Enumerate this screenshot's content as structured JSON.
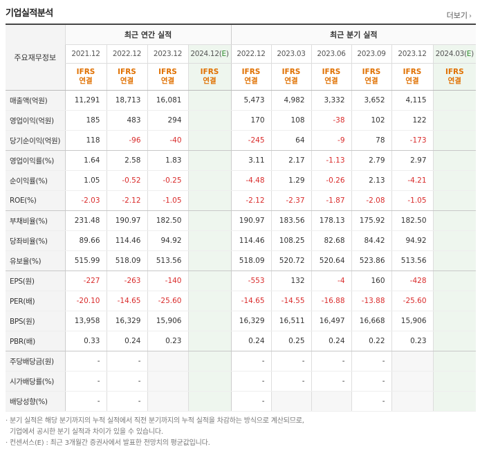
{
  "header": {
    "title": "기업실적분석",
    "more_label": "더보기"
  },
  "table": {
    "row_header_label": "주요재무정보",
    "annual_label": "최근 연간 실적",
    "quarter_label": "최근 분기 실적",
    "annual_periods": [
      "2021.12",
      "2022.12",
      "2023.12",
      "2024.12(E)"
    ],
    "quarter_periods": [
      "2022.12",
      "2023.03",
      "2023.06",
      "2023.09",
      "2023.12",
      "2024.03(E)"
    ],
    "ifrs_line1": "IFRS",
    "ifrs_line2": "연결",
    "rows": [
      {
        "label": "매출액(억원)",
        "annual": [
          "11,291",
          "18,713",
          "16,081",
          ""
        ],
        "quarter": [
          "5,473",
          "4,982",
          "3,332",
          "3,652",
          "4,115",
          ""
        ]
      },
      {
        "label": "영업이익(억원)",
        "annual": [
          "185",
          "483",
          "294",
          ""
        ],
        "quarter": [
          "170",
          "108",
          "-38",
          "102",
          "122",
          ""
        ]
      },
      {
        "label": "당기순이익(억원)",
        "annual": [
          "118",
          "-96",
          "-40",
          ""
        ],
        "quarter": [
          "-245",
          "64",
          "-9",
          "78",
          "-173",
          ""
        ]
      },
      {
        "label": "영업이익률(%)",
        "annual": [
          "1.64",
          "2.58",
          "1.83",
          ""
        ],
        "quarter": [
          "3.11",
          "2.17",
          "-1.13",
          "2.79",
          "2.97",
          ""
        ]
      },
      {
        "label": "순이익률(%)",
        "annual": [
          "1.05",
          "-0.52",
          "-0.25",
          ""
        ],
        "quarter": [
          "-4.48",
          "1.29",
          "-0.26",
          "2.13",
          "-4.21",
          ""
        ]
      },
      {
        "label": "ROE(%)",
        "annual": [
          "-2.03",
          "-2.12",
          "-1.05",
          ""
        ],
        "quarter": [
          "-2.12",
          "-2.37",
          "-1.87",
          "-2.08",
          "-1.05",
          ""
        ]
      },
      {
        "label": "부채비율(%)",
        "annual": [
          "231.48",
          "190.97",
          "182.50",
          ""
        ],
        "quarter": [
          "190.97",
          "183.56",
          "178.13",
          "175.92",
          "182.50",
          ""
        ]
      },
      {
        "label": "당좌비율(%)",
        "annual": [
          "89.66",
          "114.46",
          "94.92",
          ""
        ],
        "quarter": [
          "114.46",
          "108.25",
          "82.68",
          "84.42",
          "94.92",
          ""
        ]
      },
      {
        "label": "유보율(%)",
        "annual": [
          "515.99",
          "518.09",
          "513.56",
          ""
        ],
        "quarter": [
          "518.09",
          "520.72",
          "520.64",
          "523.86",
          "513.56",
          ""
        ]
      },
      {
        "label": "EPS(원)",
        "annual": [
          "-227",
          "-263",
          "-140",
          ""
        ],
        "quarter": [
          "-553",
          "132",
          "-4",
          "160",
          "-428",
          ""
        ]
      },
      {
        "label": "PER(배)",
        "annual": [
          "-20.10",
          "-14.65",
          "-25.60",
          ""
        ],
        "quarter": [
          "-14.65",
          "-14.55",
          "-16.88",
          "-13.88",
          "-25.60",
          ""
        ]
      },
      {
        "label": "BPS(원)",
        "annual": [
          "13,958",
          "16,329",
          "15,906",
          ""
        ],
        "quarter": [
          "16,329",
          "16,511",
          "16,497",
          "16,668",
          "15,906",
          ""
        ]
      },
      {
        "label": "PBR(배)",
        "annual": [
          "0.33",
          "0.24",
          "0.23",
          ""
        ],
        "quarter": [
          "0.24",
          "0.25",
          "0.24",
          "0.22",
          "0.23",
          ""
        ]
      },
      {
        "label": "주당배당금(원)",
        "annual": [
          "-",
          "-",
          "",
          ""
        ],
        "quarter": [
          "-",
          "-",
          "-",
          "-",
          "",
          ""
        ]
      },
      {
        "label": "시가배당률(%)",
        "annual": [
          "-",
          "-",
          "",
          ""
        ],
        "quarter": [
          "-",
          "-",
          "-",
          "-",
          "",
          ""
        ]
      },
      {
        "label": "배당성향(%)",
        "annual": [
          "-",
          "-",
          "",
          ""
        ],
        "quarter": [
          "-",
          "",
          "",
          "-",
          "",
          ""
        ]
      }
    ]
  },
  "notes": [
    "분기 실적은 해당 분기까지의 누적 실적에서 직전 분기까지의 누적 실적을 차감하는 방식으로 계산되므로,",
    "기업에서 공시한 분기 실적과 차이가 있을 수 있습니다.",
    "컨센서스(E) : 최근 3개월간 증권사에서 발표한 전망치의 평균값입니다."
  ],
  "colors": {
    "negative": "#d92b2b",
    "ifrs": "#e07000",
    "estimate_bg": "#eef6ee"
  }
}
